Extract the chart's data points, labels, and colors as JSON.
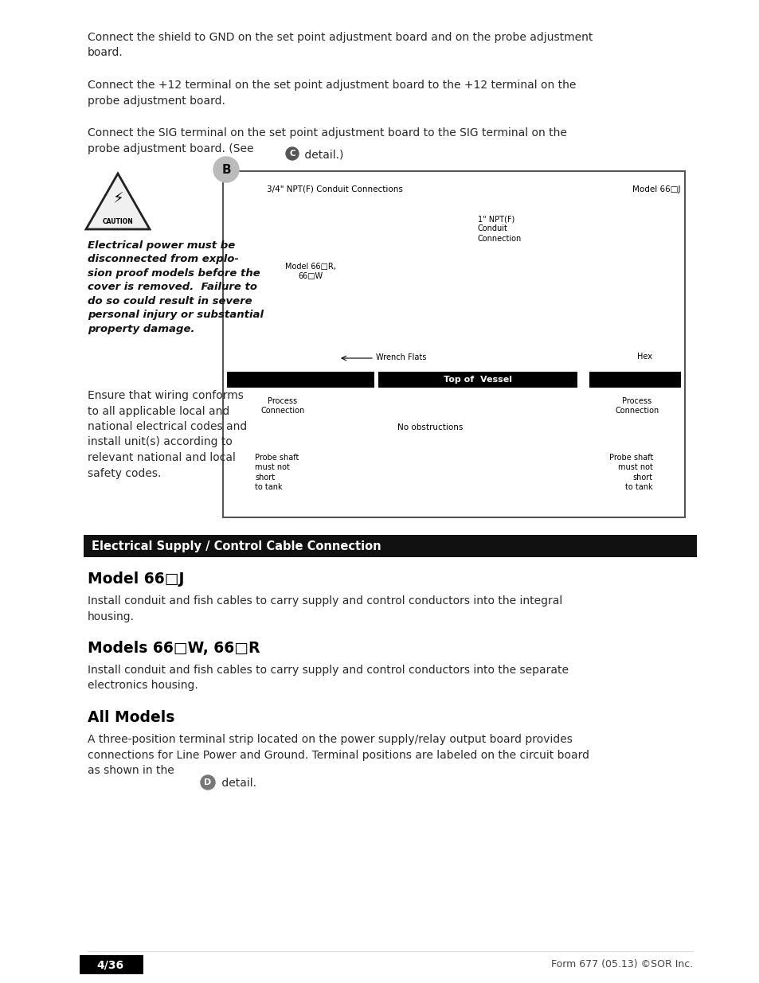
{
  "bg_color": "#ffffff",
  "lm": 0.115,
  "rm": 0.965,
  "bfs": 10.0,
  "body_color": "#2a2a2a",
  "para1": "Connect the shield to GND on the set point adjustment board and on the probe adjustment\nboard.",
  "para2": "Connect the +12 terminal on the set point adjustment board to the +12 terminal on the\nprobe adjustment board.",
  "para3_pre": "Connect the SIG terminal on the set point adjustment board to the SIG terminal on the\nprobe adjustment board. (See ",
  "para3_c": "C",
  "para3_post": " detail.)",
  "caution_italic": "Electrical power must be\ndisconnected from explo-\nsion proof models before the\ncover is removed.  Failure to\ndo so could result in severe\npersonal injury or substantial\nproperty damage.",
  "ensure_text": "Ensure that wiring conforms\nto all applicable local and\nnational electrical codes and\ninstall unit(s) according to\nrelevant national and local\nsafety codes.",
  "sec_bar_text": "Electrical Supply / Control Cable Connection",
  "h2_j": "Model 66□J",
  "p_j": "Install conduit and fish cables to carry supply and control conductors into the integral\nhousing.",
  "h2_wr": "Models 66□W, 66□R",
  "p_wr": "Install conduit and fish cables to carry supply and control conductors into the separate\nelectronics housing.",
  "h2_all": "All Models",
  "p_all_pre": "A three-position terminal strip located on the power supply/relay output board provides\nconnections for Line Power and Ground. Terminal positions are labeled on the circuit board\nas shown in the ",
  "p_all_d": "D",
  "p_all_post": " detail.",
  "footer_l": "4/36",
  "footer_r": "Form 677 (05.13) ©SOR Inc.",
  "diag_label_3_4": "3/4\" NPT(F) Conduit Connections",
  "diag_label_model_j": "Model 66□J",
  "diag_label_1npt": "1\" NPT(F)\nConduit\nConnection",
  "diag_label_model_rw": "Model 66□R,\n66□W",
  "diag_label_wrench": "Wrench Flats",
  "diag_label_hex": "Hex",
  "diag_label_vessel": "Top of  Vessel",
  "diag_label_proc_l": "Process\nConnection",
  "diag_label_proc_r": "Process\nConnection",
  "diag_label_no_obs": "No obstructions",
  "diag_label_probe_l": "Probe shaft\nmust not\nshort\nto tank",
  "diag_label_probe_r": "Probe shaft\nmust not\nshort\nto tank"
}
